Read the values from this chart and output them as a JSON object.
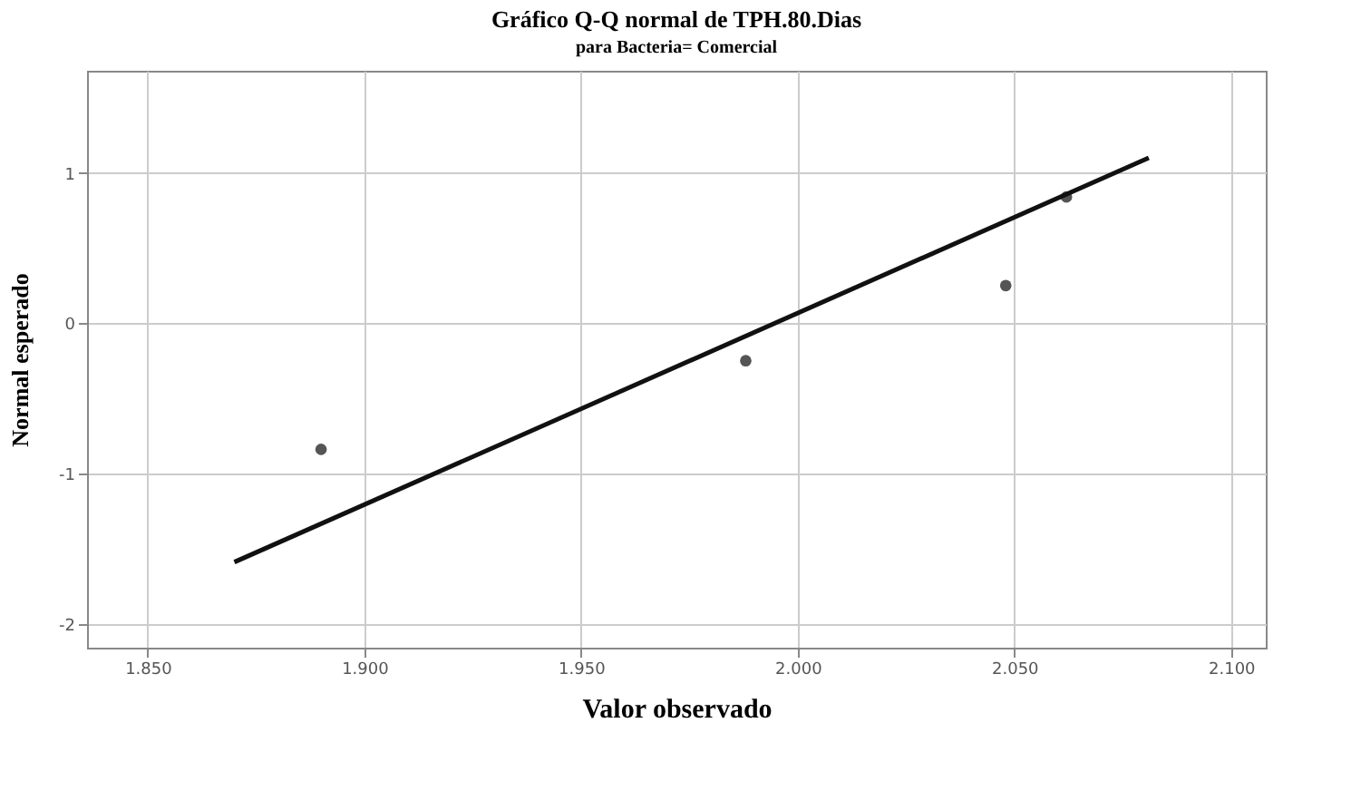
{
  "chart_data": {
    "type": "scatter",
    "title": "Gráfico Q-Q normal de TPH.80.Dias",
    "subtitle": "para Bacteria= Comercial",
    "xlabel": "Valor observado",
    "ylabel": "Normal esperado",
    "xlim": [
      1.836,
      2.108
    ],
    "ylim": [
      -2.16,
      1.68
    ],
    "xticks": [
      {
        "value": 1.85,
        "label": "1.850"
      },
      {
        "value": 1.9,
        "label": "1.900"
      },
      {
        "value": 1.95,
        "label": "1.950"
      },
      {
        "value": 2.0,
        "label": "2.000"
      },
      {
        "value": 2.05,
        "label": "2.050"
      },
      {
        "value": 2.1,
        "label": "2.100"
      }
    ],
    "yticks": [
      -2,
      -1,
      0,
      1
    ],
    "grid": true,
    "series": [
      {
        "color": "#555555",
        "marker": "circle",
        "x": [
          1.89,
          1.988,
          2.048,
          2.062
        ],
        "values": [
          -0.84,
          -0.25,
          0.25,
          0.84
        ]
      },
      {
        "type": "line",
        "color": "#111111",
        "marker": "none",
        "line_style": "solid",
        "x": [
          1.87,
          2.081
        ],
        "values": [
          -1.59,
          1.1
        ]
      }
    ]
  }
}
